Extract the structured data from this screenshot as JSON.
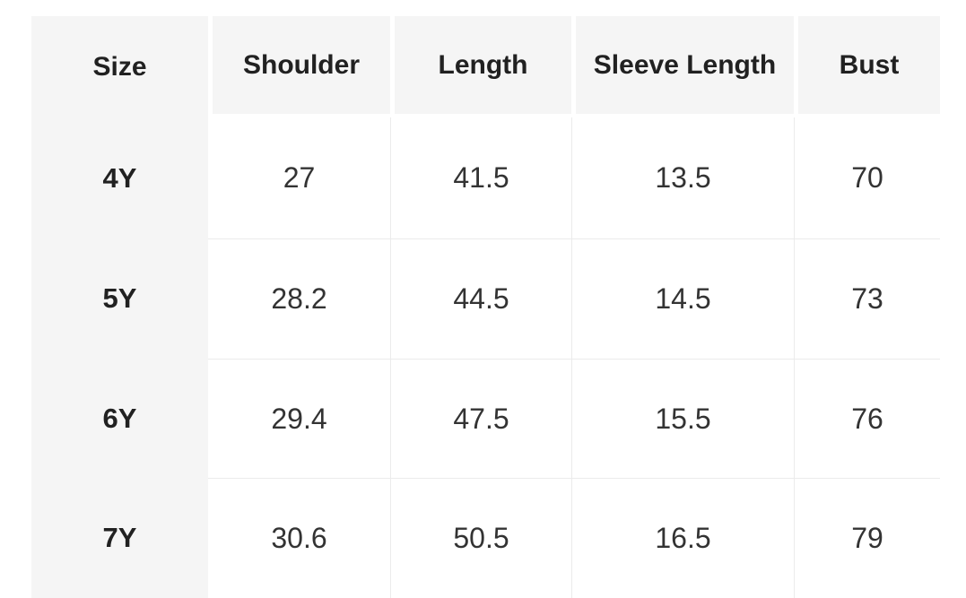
{
  "size_chart": {
    "columns": [
      "Size",
      "Shoulder",
      "Length",
      "Sleeve Length",
      "Bust"
    ],
    "rows": [
      {
        "size": "4Y",
        "shoulder": "27",
        "length": "41.5",
        "sleeve_length": "13.5",
        "bust": "70"
      },
      {
        "size": "5Y",
        "shoulder": "28.2",
        "length": "44.5",
        "sleeve_length": "14.5",
        "bust": "73"
      },
      {
        "size": "6Y",
        "shoulder": "29.4",
        "length": "47.5",
        "sleeve_length": "15.5",
        "bust": "76"
      },
      {
        "size": "7Y",
        "shoulder": "30.6",
        "length": "50.5",
        "sleeve_length": "16.5",
        "bust": "79"
      }
    ]
  },
  "colors": {
    "header_bg": "#f5f5f5",
    "size_column_bg": "#f5f5f5",
    "separator_line": "#ebebeb",
    "header_text": "#212121",
    "value_text": "#333333",
    "page_bg": "#ffffff"
  }
}
